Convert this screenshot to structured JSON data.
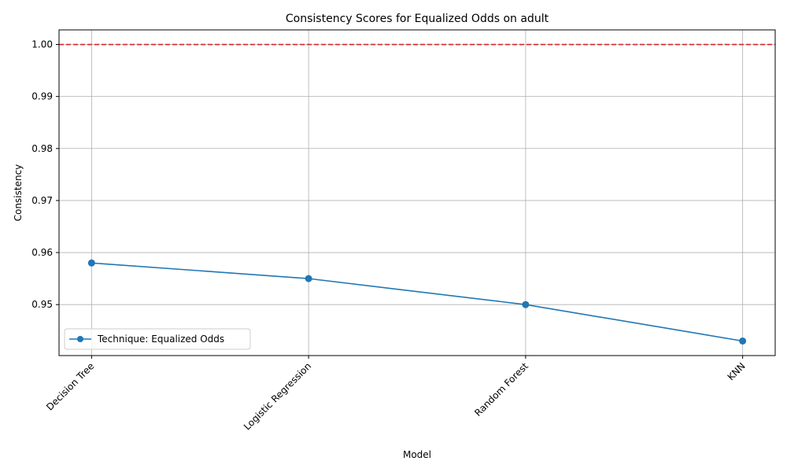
{
  "chart_data": {
    "type": "line",
    "title": "Consistency Scores for Equalized Odds on adult",
    "xlabel": "Model",
    "ylabel": "Consistency",
    "categories": [
      "Decision Tree",
      "Logistic Regression",
      "Random Forest",
      "KNN"
    ],
    "series": [
      {
        "name": "Technique: Equalized Odds",
        "values": [
          0.958,
          0.955,
          0.95,
          0.943
        ],
        "color": "#1f77b4",
        "marker": "circle"
      }
    ],
    "reference_line": {
      "y": 1.0,
      "color": "#d62728",
      "style": "dashed"
    },
    "ylim": [
      0.9402,
      1.0028
    ],
    "yticks": [
      0.95,
      0.96,
      0.97,
      0.98,
      0.99,
      1.0
    ],
    "ytick_labels": [
      "0.95",
      "0.96",
      "0.97",
      "0.98",
      "0.99",
      "1.00"
    ],
    "grid": true,
    "legend_position": "lower-left"
  }
}
